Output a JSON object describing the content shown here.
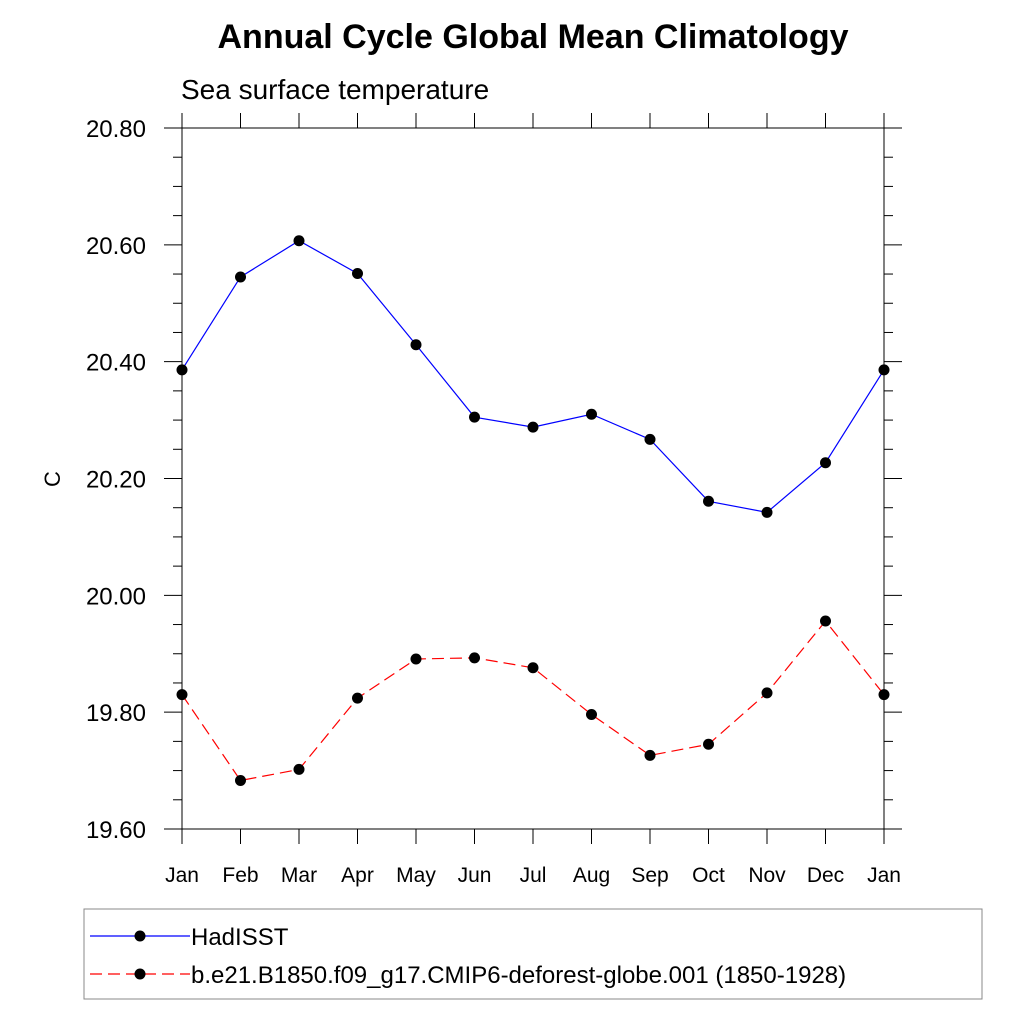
{
  "chart_data": {
    "type": "line",
    "title": "Annual Cycle Global Mean Climatology",
    "subtitle": "Sea surface temperature",
    "xlabel": "",
    "ylabel": "C",
    "categories": [
      "Jan",
      "Feb",
      "Mar",
      "Apr",
      "May",
      "Jun",
      "Jul",
      "Aug",
      "Sep",
      "Oct",
      "Nov",
      "Dec",
      "Jan"
    ],
    "ylim": [
      19.6,
      20.8
    ],
    "yticks": [
      "19.60",
      "19.80",
      "20.00",
      "20.20",
      "20.40",
      "20.60",
      "20.80"
    ],
    "series": [
      {
        "name": "HadISST",
        "color": "#0000ff",
        "dash": "solid",
        "values": [
          20.386,
          20.545,
          20.607,
          20.551,
          20.429,
          20.305,
          20.288,
          20.31,
          20.267,
          20.161,
          20.142,
          20.227,
          20.386
        ]
      },
      {
        "name": "b.e21.B1850.f09_g17.CMIP6-deforest-globe.001 (1850-1928)",
        "color": "#ff0000",
        "dash": "dashed",
        "values": [
          19.83,
          19.683,
          19.702,
          19.824,
          19.891,
          19.893,
          19.876,
          19.796,
          19.726,
          19.745,
          19.833,
          19.956,
          19.83
        ]
      }
    ],
    "legend_position": "bottom"
  }
}
